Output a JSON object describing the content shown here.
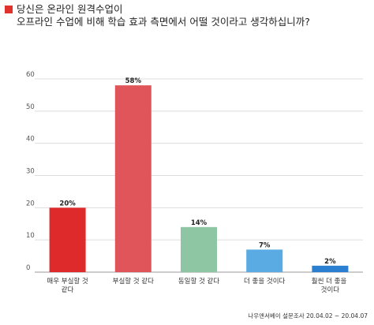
{
  "title": {
    "line1": "당신은 온라인 원격수업이",
    "line2": "오프라인 수업에 비해 학습 효과 측면에서 어떨 것이라고 생각하십니까?"
  },
  "source": "나우앤서베이 설문조사 20.04.02 ~ 20.04.07",
  "colors": {
    "title_marker": "#e0312c",
    "grid": "#dddddd",
    "axis": "#999999"
  },
  "chart_data": {
    "type": "bar",
    "categories": [
      [
        "매우 부실할 것",
        "같다"
      ],
      [
        "부실할 것 같다"
      ],
      [
        "동일할 것 같다"
      ],
      [
        "더 좋을 것이다"
      ],
      [
        "훨씬 더 좋을 ",
        "것이다"
      ]
    ],
    "values": [
      20,
      58,
      14,
      7,
      2
    ],
    "value_labels": [
      "20%",
      "58%",
      "14%",
      "7%",
      "2%"
    ],
    "bar_colors": [
      "#de2a2a",
      "#e0555a",
      "#8ec5a2",
      "#5aabe3",
      "#2b7fd1"
    ],
    "yticks": [
      0,
      10,
      20,
      30,
      40,
      50,
      60
    ],
    "ylim": [
      0,
      60
    ],
    "grid": true
  }
}
